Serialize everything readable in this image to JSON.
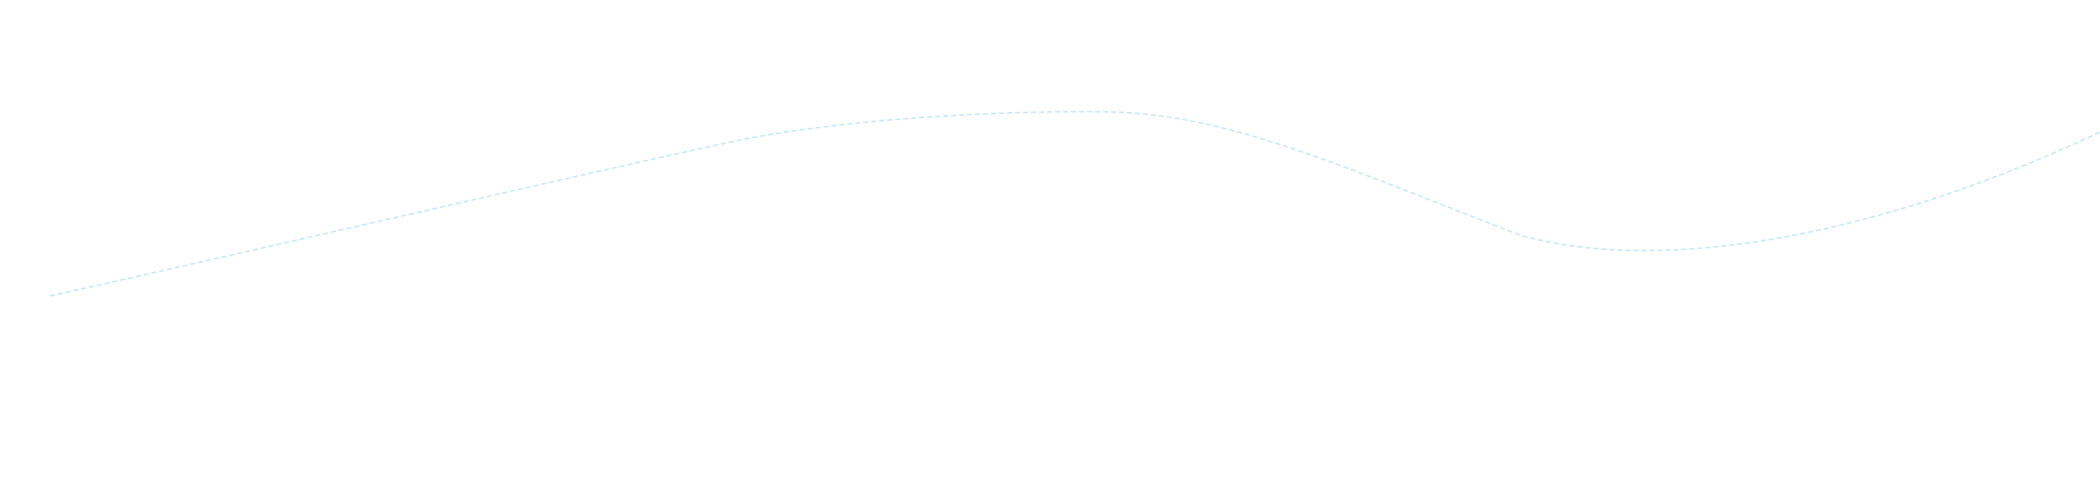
{
  "curve": {
    "stroke_color": "#c4eafa",
    "style": "dashed"
  }
}
